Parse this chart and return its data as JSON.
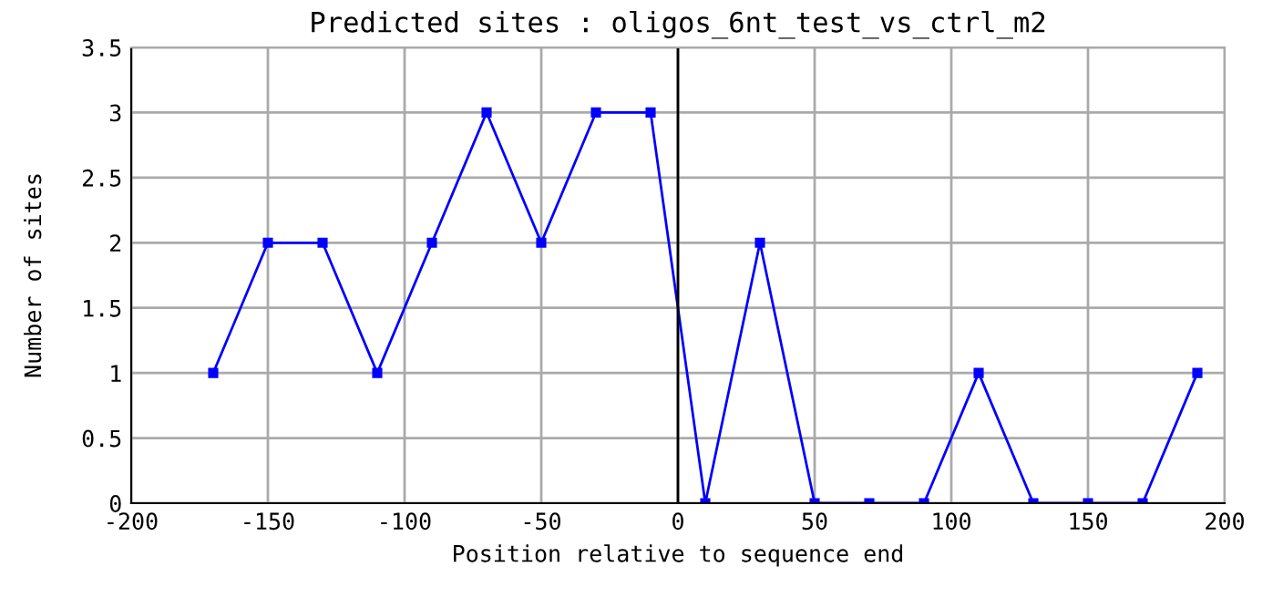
{
  "chart_data": {
    "type": "line",
    "title": "Predicted sites : oligos_6nt_test_vs_ctrl_m2",
    "xlabel": "Position relative to sequence end",
    "ylabel": "Number of sites",
    "x": [
      -170,
      -150,
      -130,
      -110,
      -90,
      -70,
      -50,
      -30,
      -10,
      10,
      30,
      50,
      70,
      90,
      110,
      130,
      150,
      170,
      190
    ],
    "series": [
      {
        "color": "#0000ff",
        "values": [
          1,
          2,
          2,
          1,
          2,
          3,
          2,
          3,
          3,
          0,
          2,
          0,
          0,
          0,
          1,
          0,
          0,
          0,
          1
        ]
      }
    ],
    "xlim": [
      -200,
      200
    ],
    "xticks": [
      -200,
      -150,
      -100,
      -50,
      0,
      50,
      100,
      150,
      200
    ],
    "ylim": [
      0,
      3.5
    ],
    "yticks": [
      0,
      0.5,
      1,
      1.5,
      2,
      2.5,
      3,
      3.5
    ],
    "grid": true,
    "marker": "square",
    "line_style": "solid",
    "legend": false,
    "ref_lines": [
      {
        "axis": "x",
        "value": 0,
        "color": "#000000"
      }
    ]
  }
}
